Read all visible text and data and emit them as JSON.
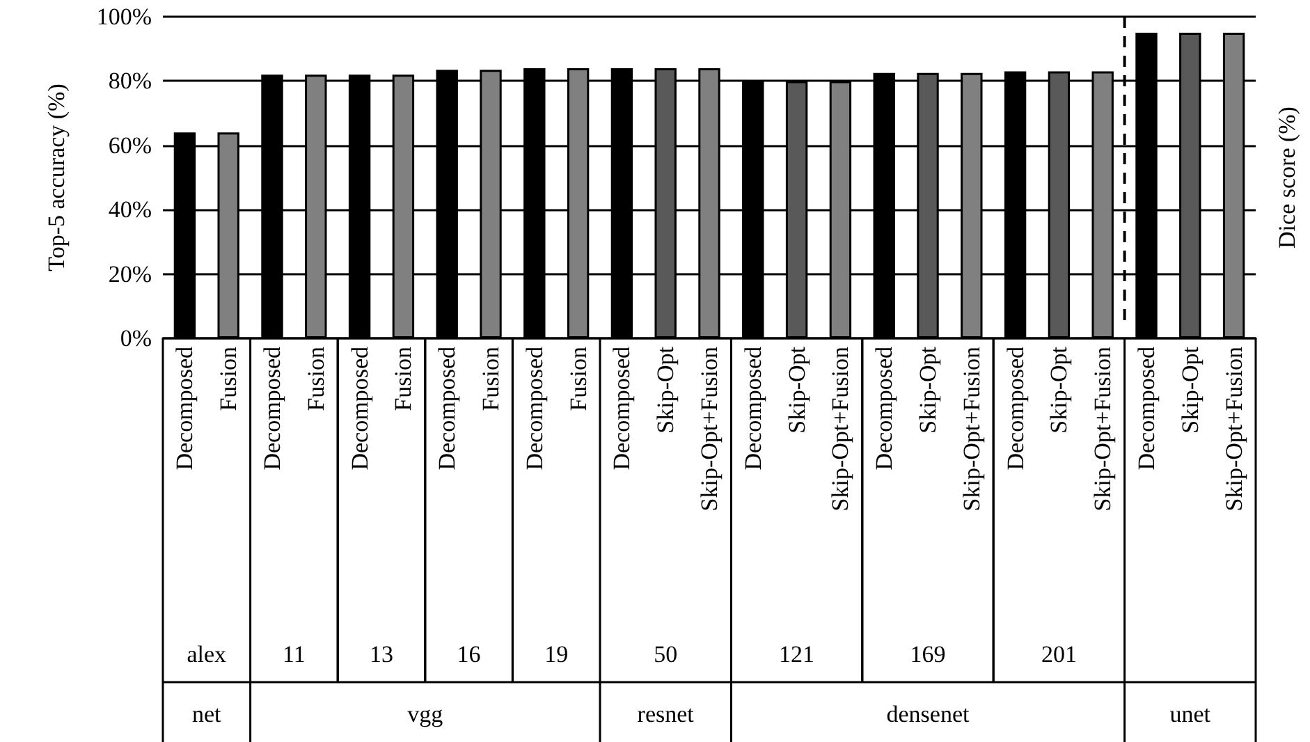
{
  "chart_data": {
    "type": "bar",
    "ylabel": "Top-5 accuracy (%)",
    "y2label": "Dice score (%)",
    "categories": [
      "Decomposed",
      "Fusion",
      "Decomposed",
      "Fusion",
      "Decomposed",
      "Fusion",
      "Decomposed",
      "Fusion",
      "Decomposed",
      "Fusion",
      "Decomposed",
      "Skip-Opt",
      "Skip-Opt+Fusion",
      "Decomposed",
      "Skip-Opt",
      "Skip-Opt+Fusion",
      "Decomposed",
      "Skip-Opt",
      "Skip-Opt+Fusion",
      "Decomposed",
      "Skip-Opt",
      "Skip-Opt+Fusion",
      "Decomposed",
      "Skip-Opt",
      "Skip-Opt+Fusion"
    ],
    "values": [
      64,
      64,
      82,
      82,
      82,
      82,
      83.5,
      83.5,
      84,
      84,
      84,
      84,
      84,
      80,
      80,
      80,
      82.5,
      82.5,
      82.5,
      83,
      83,
      83,
      95,
      95,
      95
    ],
    "colors": [
      "#000000",
      "#808080",
      "#000000",
      "#808080",
      "#000000",
      "#808080",
      "#000000",
      "#808080",
      "#000000",
      "#808080",
      "#000000",
      "#595959",
      "#808080",
      "#000000",
      "#595959",
      "#808080",
      "#000000",
      "#595959",
      "#808080",
      "#000000",
      "#595959",
      "#808080",
      "#000000",
      "#595959",
      "#808080"
    ],
    "ylim": [
      0,
      100
    ],
    "yticks": [
      {
        "value": 0,
        "label": "0%"
      },
      {
        "value": 20,
        "label": "20%"
      },
      {
        "value": 40,
        "label": "40%"
      },
      {
        "value": 60,
        "label": "60%"
      },
      {
        "value": 80,
        "label": "80%"
      },
      {
        "value": 100,
        "label": "100%"
      }
    ],
    "grid": "y",
    "annotations": [
      "alex",
      "11",
      "13",
      "16",
      "19",
      "50",
      "121",
      "169",
      "201",
      "net",
      "vgg",
      "resnet",
      "densenet",
      "unet"
    ]
  }
}
